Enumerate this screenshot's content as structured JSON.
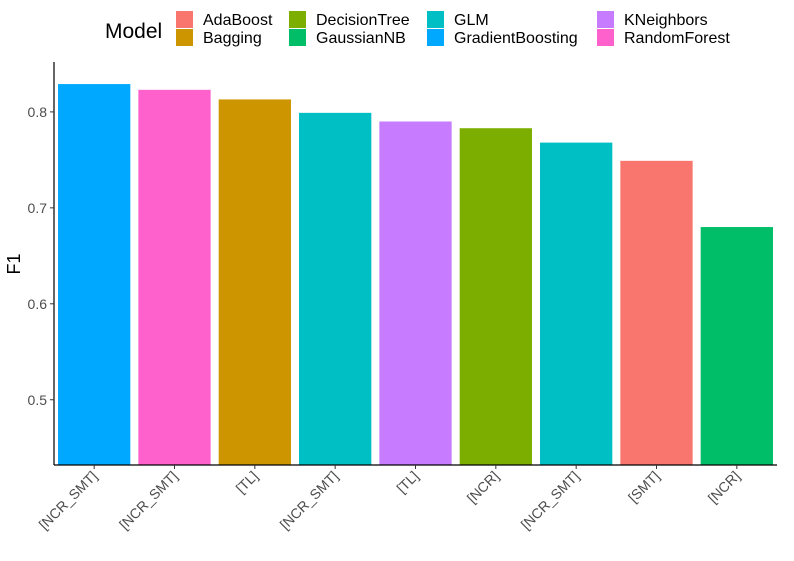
{
  "chart_data": {
    "type": "bar",
    "ylabel": "F1",
    "xlabel": "",
    "ylim": [
      0.432,
      0.852
    ],
    "yticks": [
      0.5,
      0.6,
      0.7,
      0.8
    ],
    "ytick_labels": [
      "0.5",
      "0.6",
      "0.7",
      "0.8"
    ],
    "grid": false,
    "legend": {
      "title": "Model",
      "placement": "top",
      "entries": [
        {
          "name": "AdaBoost",
          "color": "#F8766D"
        },
        {
          "name": "Bagging",
          "color": "#CD9600"
        },
        {
          "name": "DecisionTree",
          "color": "#7CAE00"
        },
        {
          "name": "GaussianNB",
          "color": "#00BE67"
        },
        {
          "name": "GLM",
          "color": "#00BFC4"
        },
        {
          "name": "GradientBoosting",
          "color": "#00A9FF"
        },
        {
          "name": "KNeighbors",
          "color": "#C77CFF"
        },
        {
          "name": "RandomForest",
          "color": "#FF61CC"
        }
      ]
    },
    "categories": [
      "[NCR_SMT]",
      "[NCR_SMT]",
      "[TL]",
      "[NCR_SMT]",
      "[TL]",
      "[NCR]",
      "[NCR_SMT]",
      "[SMT]",
      "[NCR]"
    ],
    "models": [
      "GradientBoosting",
      "RandomForest",
      "Bagging",
      "GLM",
      "KNeighbors",
      "DecisionTree",
      "GLM",
      "AdaBoost",
      "GaussianNB"
    ],
    "values": [
      0.829,
      0.823,
      0.813,
      0.799,
      0.79,
      0.783,
      0.768,
      0.749,
      0.68
    ]
  }
}
